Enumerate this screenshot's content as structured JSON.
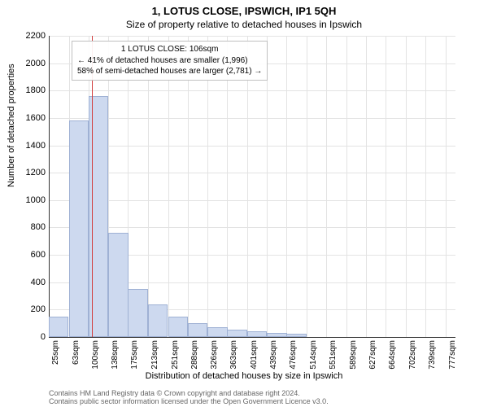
{
  "header": {
    "title": "1, LOTUS CLOSE, IPSWICH, IP1 5QH",
    "subtitle": "Size of property relative to detached houses in Ipswich"
  },
  "chart": {
    "type": "histogram",
    "ylabel": "Number of detached properties",
    "xlabel": "Distribution of detached houses by size in Ipswich",
    "ylim": [
      0,
      2200
    ],
    "ytick_step": 200,
    "yticks": [
      0,
      200,
      400,
      600,
      800,
      1000,
      1200,
      1400,
      1600,
      1800,
      2000,
      2200
    ],
    "xticks": [
      "25sqm",
      "63sqm",
      "100sqm",
      "138sqm",
      "175sqm",
      "213sqm",
      "251sqm",
      "288sqm",
      "326sqm",
      "363sqm",
      "401sqm",
      "439sqm",
      "476sqm",
      "514sqm",
      "551sqm",
      "589sqm",
      "627sqm",
      "664sqm",
      "702sqm",
      "739sqm",
      "777sqm"
    ],
    "xdomain": [
      25,
      796
    ],
    "bar_bin_width_sqm": 37.5,
    "bars": [
      {
        "x_start": 25,
        "value": 150
      },
      {
        "x_start": 63,
        "value": 1580
      },
      {
        "x_start": 100,
        "value": 1760
      },
      {
        "x_start": 138,
        "value": 760
      },
      {
        "x_start": 175,
        "value": 350
      },
      {
        "x_start": 213,
        "value": 240
      },
      {
        "x_start": 251,
        "value": 150
      },
      {
        "x_start": 288,
        "value": 100
      },
      {
        "x_start": 326,
        "value": 70
      },
      {
        "x_start": 363,
        "value": 55
      },
      {
        "x_start": 401,
        "value": 40
      },
      {
        "x_start": 439,
        "value": 30
      },
      {
        "x_start": 476,
        "value": 25
      },
      {
        "x_start": 514,
        "value": 0
      },
      {
        "x_start": 551,
        "value": 0
      },
      {
        "x_start": 589,
        "value": 0
      },
      {
        "x_start": 627,
        "value": 0
      },
      {
        "x_start": 664,
        "value": 0
      },
      {
        "x_start": 702,
        "value": 0
      },
      {
        "x_start": 739,
        "value": 0
      }
    ],
    "bar_fill": "#cdd9ef",
    "bar_stroke": "#9fb1d4",
    "background_color": "#ffffff",
    "grid_color": "#e3e3e3",
    "axis_color": "#333333",
    "marker": {
      "x_value": 106,
      "color": "#d23b3b"
    },
    "annotation": {
      "lines": [
        "1 LOTUS CLOSE: 106sqm",
        "← 41% of detached houses are smaller (1,996)",
        "58% of semi-detached houses are larger (2,781) →"
      ],
      "border_color": "#c0c0c0"
    }
  },
  "footer": {
    "line1": "Contains HM Land Registry data © Crown copyright and database right 2024.",
    "line2": "Contains public sector information licensed under the Open Government Licence v3.0."
  }
}
